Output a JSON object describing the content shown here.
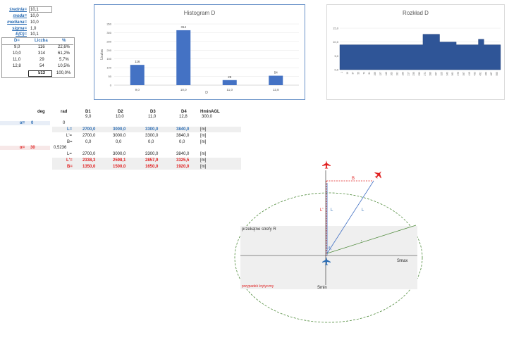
{
  "stats": [
    {
      "label": "średnia=",
      "value": "10,1"
    },
    {
      "label": "moda=",
      "value": "10,0"
    },
    {
      "label": "mediana=",
      "value": "10,0"
    },
    {
      "label": "sigma=",
      "value": "1,0"
    },
    {
      "label": "E(D)=",
      "value": "10,1"
    }
  ],
  "freq_table": {
    "headers": [
      "D=",
      "Liczba",
      "%"
    ],
    "rows": [
      [
        "9,0",
        "116",
        "22,6%"
      ],
      [
        "10,0",
        "314",
        "61,2%"
      ],
      [
        "11,0",
        "29",
        "5,7%"
      ],
      [
        "12,8",
        "54",
        "10,5%"
      ]
    ],
    "total": "513",
    "total_pct": "100,0%"
  },
  "charts": {
    "histogram_title": "Histogram D",
    "histogram_xlabel": "D",
    "histogram_ylabel": "Liczba",
    "rozklad_title": "Rozkład D"
  },
  "chart_data": [
    {
      "type": "bar",
      "title": "Histogram D",
      "xlabel": "D",
      "ylabel": "Liczba",
      "categories": [
        "9,0",
        "10,0",
        "11,0",
        "12,8"
      ],
      "values": [
        116,
        314,
        29,
        54
      ],
      "ylim": [
        0,
        350
      ],
      "yticks": [
        "0",
        "50",
        "100",
        "150",
        "200",
        "250",
        "300",
        "350"
      ],
      "grid": true
    },
    {
      "type": "area",
      "title": "Rozkład D",
      "ylim": [
        0,
        15
      ],
      "yticks": [
        "0,0",
        "5,0",
        "10,0",
        "15,0"
      ],
      "x": [
        "1",
        "19",
        "37",
        "55",
        "73",
        "91",
        "109",
        "127",
        "145",
        "163",
        "181",
        "199",
        "217",
        "235",
        "253",
        "271",
        "289",
        "307",
        "325",
        "343",
        "361",
        "379",
        "397",
        "415",
        "433",
        "451",
        "469",
        "487",
        "505"
      ],
      "values": [
        9,
        9,
        9,
        9,
        9,
        9,
        9,
        9,
        9,
        9,
        9,
        9,
        9,
        9,
        9,
        12.8,
        12.8,
        12.8,
        10,
        10,
        10,
        9,
        9,
        9,
        9,
        11,
        9,
        9,
        9
      ],
      "grid": true
    }
  ],
  "table": {
    "headers": {
      "deg": "deg",
      "rad": "rad",
      "d1": "D1",
      "d2": "D2",
      "d3": "D3",
      "d4": "D4",
      "hmin": "HminAGL"
    },
    "dvals": [
      "9,0",
      "10,0",
      "11,0",
      "12,8"
    ],
    "hmin_val": "300,0",
    "alpha1_label": "α=",
    "alpha1_deg": "0",
    "alpha1_rad": "0",
    "alpha2_label": "α=",
    "alpha2_deg": "30",
    "alpha2_rad": "0,5236",
    "rows1": [
      {
        "label": "L=",
        "v": [
          "2700,0",
          "3000,0",
          "3300,0",
          "3840,0"
        ],
        "unit": "[m]"
      },
      {
        "label": "L'=",
        "v": [
          "2700,0",
          "3000,0",
          "3300,0",
          "3840,0"
        ],
        "unit": "[m]"
      },
      {
        "label": "B=",
        "v": [
          "0,0",
          "0,0",
          "0,0",
          "0,0"
        ],
        "unit": "[m]"
      }
    ],
    "rows2": [
      {
        "label": "L=",
        "v": [
          "2700,0",
          "3000,0",
          "3300,0",
          "3840,0"
        ],
        "unit": "[m]"
      },
      {
        "label": "L'=",
        "v": [
          "2338,3",
          "2598,1",
          "2857,9",
          "3325,5"
        ],
        "unit": "[m]"
      },
      {
        "label": "B=",
        "v": [
          "1350,0",
          "1500,0",
          "1650,0",
          "1920,0"
        ],
        "unit": "[m]"
      }
    ]
  },
  "diagram": {
    "label_L_prime": "L'",
    "label_L": "L",
    "label_L2": "L",
    "label_B": "B",
    "label_alpha": "α",
    "label_r": "r",
    "label_zone": "przekątne strefy R",
    "label_smax": "Smax",
    "label_smin": "Smin",
    "label_critical": "przypadek krytyczny"
  }
}
